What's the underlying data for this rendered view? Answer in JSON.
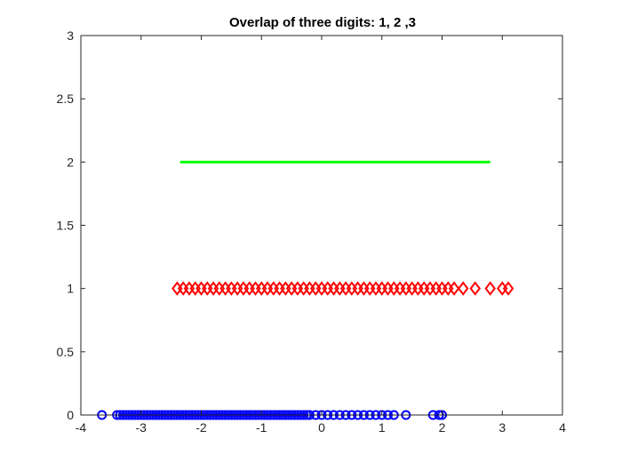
{
  "chart_data": {
    "type": "scatter",
    "title": "Overlap of three digits: 1, 2 ,3",
    "xlabel": "",
    "ylabel": "",
    "xlim": [
      -4,
      4
    ],
    "ylim": [
      0,
      3
    ],
    "x_ticks": [
      "-4",
      "-3",
      "-2",
      "-1",
      "0",
      "1",
      "2",
      "3",
      "4"
    ],
    "y_ticks": [
      "0",
      "0.5",
      "1",
      "1.5",
      "2",
      "2.5",
      "3"
    ],
    "grid": false,
    "legend": false,
    "series": [
      {
        "marker": "circle",
        "color": "#0000ff",
        "y": 0,
        "x": [
          -3.65,
          -3.4,
          -3.35,
          -3.3,
          -3.25,
          -3.2,
          -3.15,
          -3.1,
          -3.05,
          -3.0,
          -2.95,
          -2.9,
          -2.85,
          -2.8,
          -2.75,
          -2.7,
          -2.65,
          -2.6,
          -2.55,
          -2.5,
          -2.45,
          -2.4,
          -2.35,
          -2.3,
          -2.25,
          -2.2,
          -2.15,
          -2.1,
          -2.05,
          -2.0,
          -1.95,
          -1.9,
          -1.85,
          -1.8,
          -1.75,
          -1.7,
          -1.65,
          -1.6,
          -1.55,
          -1.5,
          -1.45,
          -1.4,
          -1.35,
          -1.3,
          -1.25,
          -1.2,
          -1.15,
          -1.1,
          -1.05,
          -1.0,
          -0.95,
          -0.9,
          -0.85,
          -0.8,
          -0.75,
          -0.7,
          -0.65,
          -0.6,
          -0.55,
          -0.5,
          -0.45,
          -0.4,
          -0.35,
          -0.3,
          -0.25,
          -0.2,
          -0.1,
          0.0,
          0.1,
          0.2,
          0.3,
          0.4,
          0.5,
          0.6,
          0.7,
          0.8,
          0.9,
          1.0,
          1.1,
          1.2,
          1.4,
          1.85,
          1.95,
          2.0
        ]
      },
      {
        "marker": "diamond",
        "color": "#ff0000",
        "y": 1,
        "x": [
          -2.4,
          -2.3,
          -2.2,
          -2.1,
          -2.0,
          -1.9,
          -1.8,
          -1.7,
          -1.6,
          -1.5,
          -1.4,
          -1.3,
          -1.2,
          -1.1,
          -1.0,
          -0.9,
          -0.8,
          -0.7,
          -0.6,
          -0.5,
          -0.4,
          -0.3,
          -0.2,
          -0.1,
          0.0,
          0.1,
          0.2,
          0.3,
          0.4,
          0.5,
          0.6,
          0.7,
          0.8,
          0.9,
          1.0,
          1.1,
          1.2,
          1.3,
          1.4,
          1.5,
          1.6,
          1.7,
          1.8,
          1.9,
          2.0,
          2.1,
          2.2,
          2.35,
          2.55,
          2.8,
          3.0,
          3.1
        ]
      },
      {
        "marker": "line",
        "color": "#00ff00",
        "y": 2,
        "x": [
          -2.35,
          2.8
        ]
      }
    ]
  }
}
